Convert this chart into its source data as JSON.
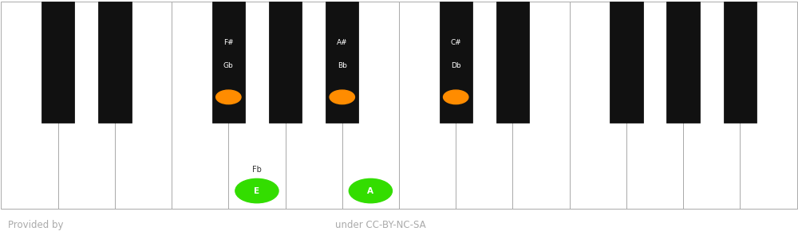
{
  "n_white": 14,
  "ww": 1.0,
  "wh": 6.5,
  "bw": 0.58,
  "bh": 3.8,
  "white_fill": "#ffffff",
  "black_fill": "#111111",
  "border_color": "#aaaaaa",
  "bg_color": "#ffffff",
  "footer_bg": "#111111",
  "footer_text_left": "Provided by",
  "footer_text_center": "under CC-BY-NC-SA",
  "footer_text_color": "#aaaaaa",
  "black_after_white": [
    0,
    1,
    3,
    4,
    5,
    7,
    8,
    10,
    11,
    12
  ],
  "highlighted_black": {
    "2": {
      "label_top": "F#",
      "label_bot": "Gb",
      "dot_color": "#ff8c00"
    },
    "4": {
      "label_top": "A#",
      "label_bot": "Bb",
      "dot_color": "#ff8c00"
    },
    "5": {
      "label_top": "C#",
      "label_bot": "Db",
      "dot_color": "#ff8c00"
    }
  },
  "highlighted_white": {
    "4": {
      "label_top": "Fb",
      "dot_color": "#33dd00",
      "dot_label": "E"
    },
    "6": {
      "label_top": "",
      "dot_color": "#33dd00",
      "dot_label": "A"
    }
  }
}
